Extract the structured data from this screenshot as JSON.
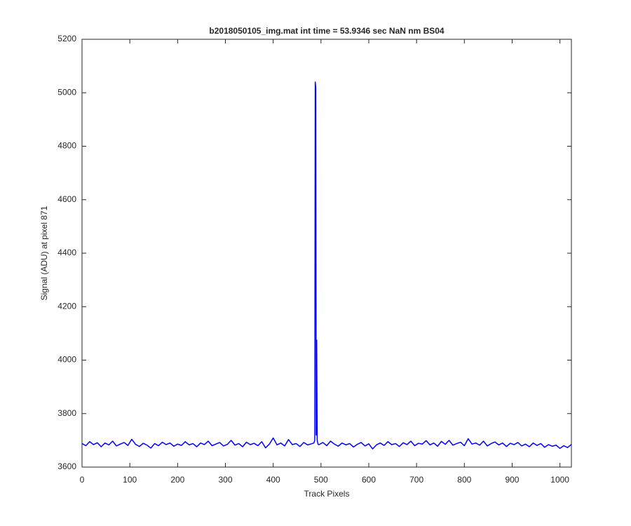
{
  "chart_data": {
    "type": "line",
    "title": "b2018050105_img.mat int time = 53.9346 sec  NaN nm BS04",
    "x_label": "Track Pixels",
    "y_label": "Signal (ADU) at pixel 871",
    "xlim": [
      0,
      1024
    ],
    "ylim": [
      3600,
      5200
    ],
    "xticks": [
      0,
      100,
      200,
      300,
      400,
      500,
      600,
      700,
      800,
      900,
      1000
    ],
    "yticks": [
      3600,
      3800,
      4000,
      4200,
      4400,
      4600,
      4800,
      5000,
      5200
    ],
    "grid": false,
    "series": [
      {
        "color": "#0000ff",
        "x": [
          0,
          8,
          16,
          24,
          32,
          40,
          48,
          56,
          64,
          72,
          80,
          88,
          96,
          104,
          112,
          120,
          128,
          136,
          144,
          152,
          160,
          168,
          176,
          184,
          192,
          200,
          208,
          216,
          224,
          232,
          240,
          248,
          256,
          264,
          272,
          280,
          288,
          296,
          304,
          312,
          320,
          328,
          336,
          344,
          352,
          360,
          368,
          376,
          384,
          392,
          400,
          408,
          416,
          424,
          432,
          440,
          448,
          456,
          464,
          472,
          480,
          485,
          487,
          488,
          489,
          490,
          491,
          492,
          494,
          496,
          504,
          512,
          520,
          528,
          536,
          544,
          552,
          560,
          568,
          576,
          584,
          592,
          600,
          608,
          616,
          624,
          632,
          640,
          648,
          656,
          664,
          672,
          680,
          688,
          696,
          704,
          712,
          720,
          728,
          736,
          744,
          752,
          760,
          768,
          776,
          784,
          792,
          800,
          808,
          816,
          824,
          832,
          840,
          848,
          856,
          864,
          872,
          880,
          888,
          896,
          904,
          912,
          920,
          928,
          936,
          944,
          952,
          960,
          968,
          976,
          984,
          992,
          1000,
          1008,
          1016,
          1024
        ],
        "values": [
          3688,
          3680,
          3695,
          3684,
          3691,
          3676,
          3690,
          3683,
          3697,
          3679,
          3686,
          3692,
          3681,
          3704,
          3685,
          3677,
          3689,
          3682,
          3671,
          3688,
          3680,
          3693,
          3684,
          3690,
          3678,
          3686,
          3681,
          3695,
          3683,
          3688,
          3676,
          3690,
          3684,
          3697,
          3680,
          3686,
          3692,
          3679,
          3685,
          3700,
          3682,
          3688,
          3676,
          3693,
          3684,
          3689,
          3680,
          3695,
          3672,
          3686,
          3709,
          3683,
          3690,
          3679,
          3703,
          3684,
          3688,
          3677,
          3692,
          3683,
          3687,
          3690,
          3700,
          5040,
          5020,
          3720,
          4075,
          3700,
          3685,
          3684,
          3692,
          3680,
          3697,
          3686,
          3678,
          3690,
          3683,
          3688,
          3675,
          3685,
          3692,
          3679,
          3687,
          3668,
          3683,
          3690,
          3681,
          3695,
          3684,
          3688,
          3677,
          3691,
          3684,
          3697,
          3680,
          3689,
          3686,
          3699,
          3683,
          3690,
          3678,
          3696,
          3685,
          3700,
          3682,
          3688,
          3693,
          3680,
          3706,
          3686,
          3690,
          3682,
          3697,
          3679,
          3688,
          3694,
          3683,
          3690,
          3677,
          3689,
          3684,
          3692,
          3679,
          3686,
          3676,
          3690,
          3681,
          3688,
          3674,
          3684,
          3678,
          3682,
          3670,
          3680,
          3673,
          3685
        ]
      }
    ]
  }
}
